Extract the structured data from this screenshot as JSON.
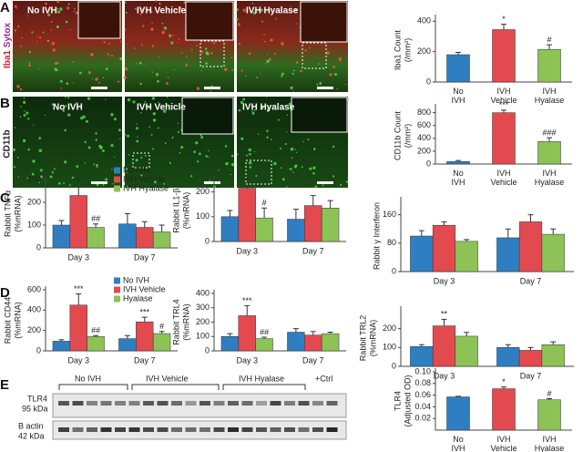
{
  "panels": [
    "A",
    "B",
    "C",
    "D",
    "E"
  ],
  "images": {
    "stain_a": [
      "Iba1",
      "Sytox"
    ],
    "stain_b": "CD11b",
    "labels_a": [
      "No IVH",
      "IVH Vehicle",
      "IVH Hyalase"
    ],
    "labels_b": [
      "No IVH",
      "IVH Vehicle",
      "IVH Hyalase"
    ]
  },
  "blot": {
    "groups": [
      "No IVH",
      "IVH Vehicle",
      "IVH Hyalase",
      "+Ctrl"
    ],
    "bands": [
      {
        "name": "TLR4",
        "size": "95 kDa"
      },
      {
        "name": "B actin",
        "size": "42 kDa"
      }
    ]
  },
  "chart_data": [
    {
      "type": "bar",
      "ylabel": [
        "Iba1 Count",
        "(/mm²)"
      ],
      "categories": [
        "No IVH",
        "IVH Vehicle",
        "IVH Hyalase"
      ],
      "values": [
        180,
        345,
        215
      ],
      "errors": [
        15,
        35,
        30
      ],
      "annotations": [
        null,
        "*",
        "#"
      ],
      "colors": [
        "#2f7ec1",
        "#e24a4f",
        "#8dc257"
      ],
      "ylim": [
        0,
        420
      ],
      "yticks": [
        0,
        200,
        400
      ]
    },
    {
      "type": "bar",
      "ylabel": [
        "CD11b Count",
        "(/mm²)"
      ],
      "categories": [
        "No IVH",
        "IVH Vehicle",
        "IVH Hyalase"
      ],
      "values": [
        40,
        800,
        350
      ],
      "errors": [
        15,
        40,
        60
      ],
      "annotations": [
        null,
        "***",
        "###"
      ],
      "colors": [
        "#2f7ec1",
        "#e24a4f",
        "#8dc257"
      ],
      "ylim": [
        0,
        880
      ],
      "yticks": [
        0,
        200,
        400,
        600,
        800
      ]
    },
    {
      "type": "bar",
      "ylabel": [
        "Rabbit TNFα",
        "(%mRNA)"
      ],
      "categories": [
        "Day 3",
        "Day 7"
      ],
      "legend": "upper right",
      "series": [
        {
          "name": "No IVH",
          "color": "#2f7ec1",
          "values": [
            100,
            105
          ],
          "errors": [
            20,
            45
          ],
          "annotations": [
            null,
            null
          ]
        },
        {
          "name": "IVH Vehicle",
          "color": "#e24a4f",
          "values": [
            230,
            90
          ],
          "errors": [
            40,
            25
          ],
          "annotations": [
            "*",
            null
          ]
        },
        {
          "name": "IVH Hyalase",
          "color": "#8dc257",
          "values": [
            90,
            70
          ],
          "errors": [
            15,
            30
          ],
          "annotations": [
            "##",
            null
          ]
        }
      ],
      "ylim": [
        0,
        300
      ],
      "yticks": [
        0,
        100,
        200,
        300
      ]
    },
    {
      "type": "bar",
      "ylabel": [
        "Rabbit IL1-β",
        "(%mRNA)"
      ],
      "categories": [
        "Day 3",
        "Day 7"
      ],
      "series": [
        {
          "name": "No IVH",
          "color": "#2f7ec1",
          "values": [
            100,
            90
          ],
          "errors": [
            25,
            40
          ],
          "annotations": [
            null,
            null
          ]
        },
        {
          "name": "IVH Vehicle",
          "color": "#e24a4f",
          "values": [
            215,
            145
          ],
          "errors": [
            10,
            40
          ],
          "annotations": [
            "*",
            null
          ]
        },
        {
          "name": "IVH Hyalase",
          "color": "#8dc257",
          "values": [
            95,
            135
          ],
          "errors": [
            40,
            30
          ],
          "annotations": [
            "#",
            null
          ]
        }
      ],
      "ylim": [
        0,
        250
      ],
      "yticks": [
        0,
        100,
        200
      ]
    },
    {
      "type": "bar",
      "ylabel": [
        "Rabbit γ Interferon"
      ],
      "categories": [
        "Day 3",
        "Day 7"
      ],
      "series": [
        {
          "name": "No IVH",
          "color": "#2f7ec1",
          "values": [
            100,
            95
          ],
          "errors": [
            15,
            25
          ],
          "annotations": [
            null,
            null
          ]
        },
        {
          "name": "IVH Vehicle",
          "color": "#e24a4f",
          "values": [
            130,
            140
          ],
          "errors": [
            10,
            20
          ],
          "annotations": [
            null,
            null
          ]
        },
        {
          "name": "IVH Hyalase",
          "color": "#8dc257",
          "values": [
            85,
            105
          ],
          "errors": [
            5,
            15
          ],
          "annotations": [
            null,
            null
          ]
        }
      ],
      "ylim": [
        0,
        200
      ],
      "yticks": [
        0,
        80,
        160
      ]
    },
    {
      "type": "bar",
      "ylabel": [
        "Rabbit CD44",
        "(%mRNA)"
      ],
      "categories": [
        "Day 3",
        "Day 7"
      ],
      "legend": "upper right",
      "series": [
        {
          "name": "No IVH",
          "color": "#2f7ec1",
          "values": [
            95,
            120
          ],
          "errors": [
            15,
            30
          ],
          "annotations": [
            null,
            null
          ]
        },
        {
          "name": "IVH Vehicle",
          "color": "#e24a4f",
          "values": [
            450,
            285
          ],
          "errors": [
            110,
            45
          ],
          "annotations": [
            "***",
            "***"
          ]
        },
        {
          "name": "Hyalase",
          "color": "#8dc257",
          "values": [
            140,
            170
          ],
          "errors": [
            10,
            20
          ],
          "annotations": [
            "##",
            "#"
          ]
        }
      ],
      "ylim": [
        0,
        600
      ],
      "yticks": [
        0,
        200,
        400,
        600
      ]
    },
    {
      "type": "bar",
      "ylabel": [
        "Rabbit TRL4",
        "(%mRNA)"
      ],
      "categories": [
        "Day 3",
        "Day 7"
      ],
      "series": [
        {
          "name": "No IVH",
          "color": "#2f7ec1",
          "values": [
            100,
            130
          ],
          "errors": [
            20,
            25
          ],
          "annotations": [
            null,
            null
          ]
        },
        {
          "name": "IVH Vehicle",
          "color": "#e24a4f",
          "values": [
            245,
            110
          ],
          "errors": [
            70,
            25
          ],
          "annotations": [
            "***",
            null
          ]
        },
        {
          "name": "IVH Hyalase",
          "color": "#8dc257",
          "values": [
            85,
            120
          ],
          "errors": [
            10,
            10
          ],
          "annotations": [
            "##",
            null
          ]
        }
      ],
      "ylim": [
        0,
        400
      ],
      "yticks": [
        0,
        100,
        200,
        300,
        400
      ]
    },
    {
      "type": "bar",
      "ylabel": [
        "Rabbit TRL2",
        "(%mRNA)"
      ],
      "categories": [
        "Day 3",
        "Day 7"
      ],
      "series": [
        {
          "name": "No IVH",
          "color": "#2f7ec1",
          "values": [
            105,
            100
          ],
          "errors": [
            10,
            15
          ],
          "annotations": [
            null,
            null
          ]
        },
        {
          "name": "IVH Vehicle",
          "color": "#e24a4f",
          "values": [
            215,
            85
          ],
          "errors": [
            35,
            15
          ],
          "annotations": [
            "**",
            null
          ]
        },
        {
          "name": "IVH Hyalase",
          "color": "#8dc257",
          "values": [
            160,
            115
          ],
          "errors": [
            20,
            15
          ],
          "annotations": [
            null,
            null
          ]
        }
      ],
      "ylim": [
        0,
        300
      ],
      "yticks": [
        0,
        100,
        200
      ]
    },
    {
      "type": "bar",
      "ylabel": [
        "TLR4",
        "(Adjusted OD)"
      ],
      "categories": [
        "No IVH",
        "IVH Vehicle",
        "IVH Hyalase"
      ],
      "values": [
        0.057,
        0.071,
        0.052
      ],
      "errors": [
        0.001,
        0.003,
        0.002
      ],
      "annotations": [
        null,
        "*",
        "#"
      ],
      "colors": [
        "#2f7ec1",
        "#e24a4f",
        "#8dc257"
      ],
      "ylim": [
        0,
        0.1
      ],
      "yticks": [
        0.02,
        0.04,
        0.06,
        0.08,
        {
          "value": 0.1,
          "label": "0.10"
        }
      ]
    }
  ]
}
